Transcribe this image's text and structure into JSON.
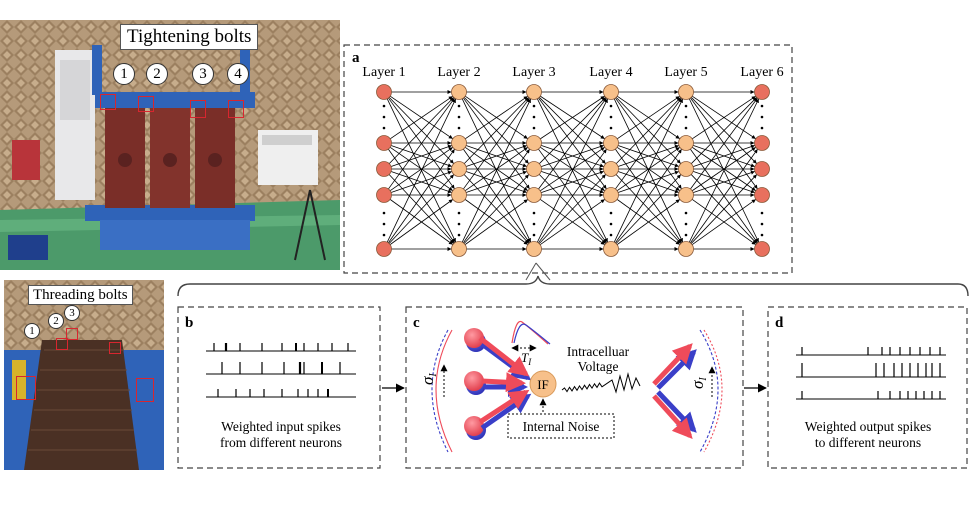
{
  "photo_top": {
    "title": "Tightening bolts",
    "markers": [
      "1",
      "2",
      "3",
      "4"
    ]
  },
  "photo_bottom": {
    "title": "Threading bolts",
    "markers": [
      "1",
      "2",
      "3"
    ]
  },
  "panel_a": {
    "label": "a",
    "layers": [
      "Layer 1",
      "Layer 2",
      "Layer 3",
      "Layer 4",
      "Layer 5",
      "Layer 6"
    ]
  },
  "panel_b": {
    "label": "b",
    "caption_line1": "Weighted input spikes",
    "caption_line2": "from different neurons"
  },
  "panel_c": {
    "label": "c",
    "neuron_label": "IF",
    "voltage_line1": "Intracelluar",
    "voltage_line2": "Voltage",
    "noise_label": "Internal Noise",
    "sigma": "σ",
    "sigma_sub": "I",
    "tau": "T",
    "tau_sub": "I"
  },
  "panel_d": {
    "label": "d",
    "caption_line1": "Weighted output spikes",
    "caption_line2": "to different neurons"
  },
  "colors": {
    "red_neuron": "#e8705e",
    "orange_neuron": "#f7c08a",
    "arrow_red": "#ef4b5a",
    "arrow_blue": "#3a3fc8"
  }
}
